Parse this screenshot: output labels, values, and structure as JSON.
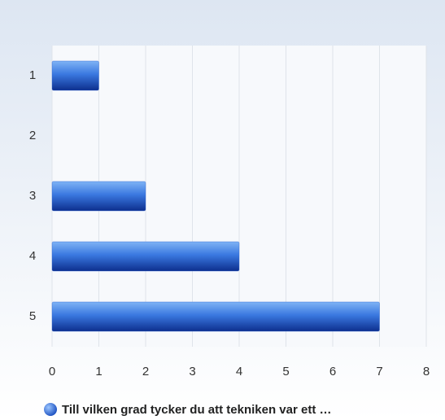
{
  "chart_data": {
    "type": "bar",
    "orientation": "horizontal",
    "categories": [
      "1",
      "2",
      "3",
      "4",
      "5"
    ],
    "series": [
      {
        "name": "Till vilken grad tycker du att tekniken var ett …",
        "color": "#2a62d0",
        "values": [
          1,
          0,
          2,
          4,
          7
        ]
      }
    ],
    "xlim": [
      0,
      8
    ],
    "xticks": [
      0,
      1,
      2,
      3,
      4,
      5,
      6,
      7,
      8
    ],
    "grid": true,
    "legend": "bottom"
  }
}
